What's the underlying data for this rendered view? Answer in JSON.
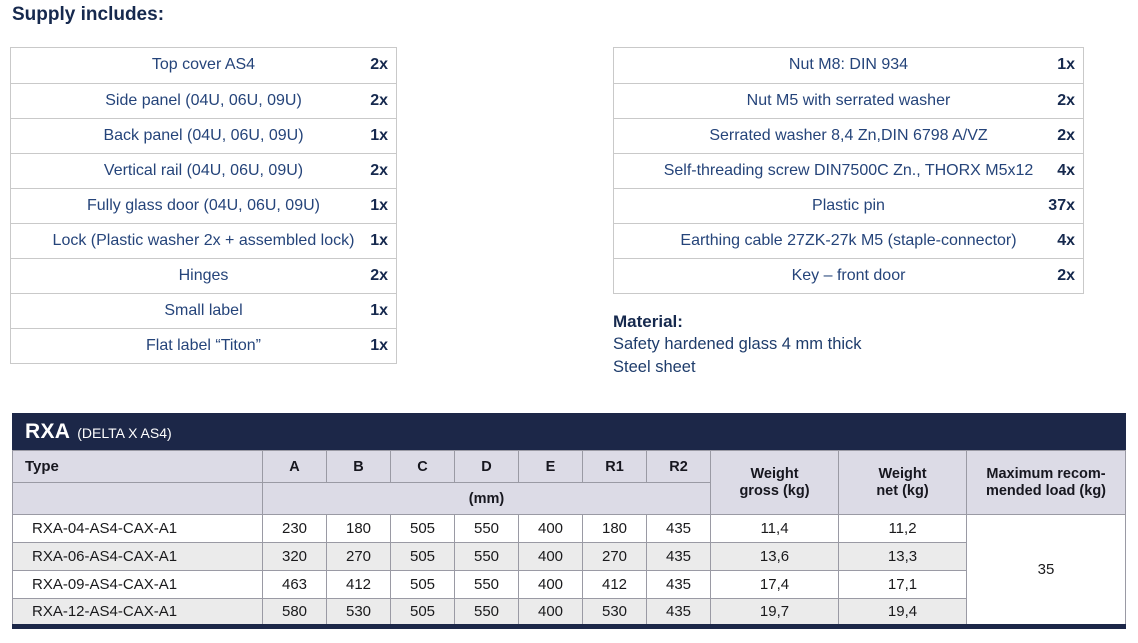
{
  "page_title": "Supply includes:",
  "colors": {
    "navy": "#1c2748",
    "heading_text": "#16294e",
    "item_text": "#25447a",
    "table_header_bg": "#dcdbe6",
    "spec_border": "#9a9aa4",
    "alt_row_bg": "#ebebeb",
    "supply_border": "#c9c9c9"
  },
  "supply_left": {
    "rows": [
      {
        "label": "Top cover AS4",
        "qty": "2x"
      },
      {
        "label": "Side panel (04U, 06U, 09U)",
        "qty": "2x"
      },
      {
        "label": "Back panel (04U, 06U, 09U)",
        "qty": "1x"
      },
      {
        "label": "Vertical rail (04U, 06U, 09U)",
        "qty": "2x"
      },
      {
        "label": "Fully glass door (04U, 06U, 09U)",
        "qty": "1x"
      },
      {
        "label": "Lock (Plastic washer 2x + assembled lock)",
        "qty": "1x"
      },
      {
        "label": "Hinges",
        "qty": "2x"
      },
      {
        "label": "Small label",
        "qty": "1x"
      },
      {
        "label": "Flat label “Titon”",
        "qty": "1x"
      }
    ]
  },
  "supply_right": {
    "rows": [
      {
        "label": "Nut M8: DIN 934",
        "qty": "1x"
      },
      {
        "label": "Nut M5 with serrated washer",
        "qty": "2x"
      },
      {
        "label": "Serrated washer 8,4 Zn,DIN 6798 A/VZ",
        "qty": "2x"
      },
      {
        "label": "Self-threading screw DIN7500C Zn., THORX M5x12",
        "qty": "4x"
      },
      {
        "label": "Plastic pin",
        "qty": "37x"
      },
      {
        "label": "Earthing cable 27ZK-27k M5 (staple-connector)",
        "qty": "4x"
      },
      {
        "label": "Key – front door",
        "qty": "2x"
      }
    ]
  },
  "material": {
    "heading": "Material:",
    "lines": [
      "Safety hardened glass 4 mm thick",
      "Steel sheet"
    ]
  },
  "spec": {
    "series": "RXA",
    "subtitle": "(DELTA X AS4)",
    "col_type": "Type",
    "dim_columns": [
      "A",
      "B",
      "C",
      "D",
      "E",
      "R1",
      "R2"
    ],
    "unit": "(mm)",
    "weight_gross_header": "Weight\ngross (kg)",
    "weight_net_header": "Weight\nnet (kg)",
    "max_load_header": "Maximum recom-\nmended load (kg)",
    "max_load": "35",
    "rows": [
      {
        "type": "RXA-04-AS4-CAX-A1",
        "dims": [
          "230",
          "180",
          "505",
          "550",
          "400",
          "180",
          "435"
        ],
        "gross": "11,4",
        "net": "11,2"
      },
      {
        "type": "RXA-06-AS4-CAX-A1",
        "dims": [
          "320",
          "270",
          "505",
          "550",
          "400",
          "270",
          "435"
        ],
        "gross": "13,6",
        "net": "13,3"
      },
      {
        "type": "RXA-09-AS4-CAX-A1",
        "dims": [
          "463",
          "412",
          "505",
          "550",
          "400",
          "412",
          "435"
        ],
        "gross": "17,4",
        "net": "17,1"
      },
      {
        "type": "RXA-12-AS4-CAX-A1",
        "dims": [
          "580",
          "530",
          "505",
          "550",
          "400",
          "530",
          "435"
        ],
        "gross": "19,7",
        "net": "19,4"
      }
    ]
  }
}
